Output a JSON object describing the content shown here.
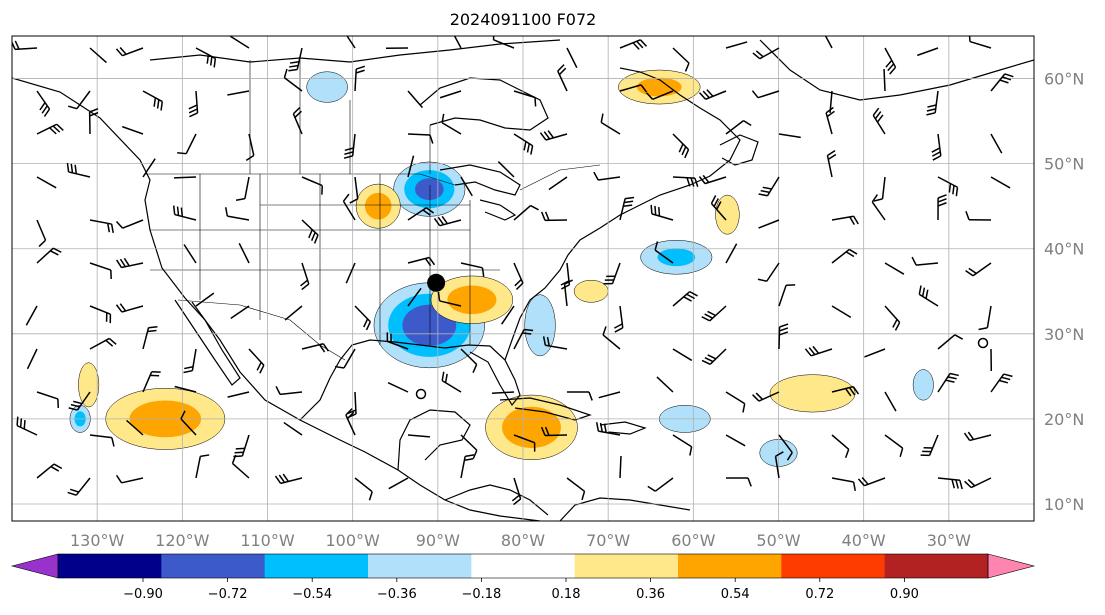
{
  "title": "2024091100 F072",
  "map": {
    "projection": "equirectangular",
    "extent_deg": {
      "lon_min": -140,
      "lon_max": -20,
      "lat_min": 8,
      "lat_max": 65
    },
    "gridlines": true,
    "lon_ticks": [
      {
        "value": -130,
        "label": "130°W"
      },
      {
        "value": -120,
        "label": "120°W"
      },
      {
        "value": -110,
        "label": "110°W"
      },
      {
        "value": -100,
        "label": "100°W"
      },
      {
        "value": -90,
        "label": "90°W"
      },
      {
        "value": -80,
        "label": "80°W"
      },
      {
        "value": -70,
        "label": "70°W"
      },
      {
        "value": -60,
        "label": "60°W"
      },
      {
        "value": -50,
        "label": "50°W"
      },
      {
        "value": -40,
        "label": "40°W"
      },
      {
        "value": -30,
        "label": "30°W"
      }
    ],
    "lat_ticks": [
      {
        "value": 60,
        "label": "60°N"
      },
      {
        "value": 50,
        "label": "50°N"
      },
      {
        "value": 40,
        "label": "40°N"
      },
      {
        "value": 30,
        "label": "30°N"
      },
      {
        "value": 20,
        "label": "20°N"
      },
      {
        "value": 10,
        "label": "10°N"
      }
    ],
    "marker": {
      "lon": -90.2,
      "lat": 36.0,
      "style": "filled-black-dot"
    },
    "colors": {
      "coast": "#000000",
      "grid": "#b0b0b0",
      "barb": "#000000"
    }
  },
  "colorbar": {
    "orientation": "horizontal",
    "extend": "both",
    "levels": [
      -0.9,
      -0.72,
      -0.54,
      -0.36,
      -0.18,
      0.18,
      0.36,
      0.54,
      0.72,
      0.9
    ],
    "tick_labels": [
      "−0.90",
      "−0.72",
      "−0.54",
      "−0.36",
      "−0.18",
      "0.18",
      "0.36",
      "0.54",
      "0.72",
      "0.90"
    ],
    "colors": [
      "#9932cc",
      "#00008b",
      "#3d5acb",
      "#00bfff",
      "#b0e0fa",
      "#ffffff",
      "#ffe88a",
      "#ffa500",
      "#ff3c00",
      "#b22222",
      "#ff85b0"
    ]
  },
  "anomalies": [
    {
      "lon": -91,
      "lat": 31,
      "rx": 6.5,
      "ry": 5.0,
      "sign": -1,
      "peak": 0.7
    },
    {
      "lon": -91,
      "lat": 47,
      "rx": 4.2,
      "ry": 3.2,
      "sign": -1,
      "peak": 0.6
    },
    {
      "lon": -132,
      "lat": 20,
      "rx": 1.2,
      "ry": 1.6,
      "sign": -1,
      "peak": 0.4
    },
    {
      "lon": -122,
      "lat": 20,
      "rx": 7,
      "ry": 3.6,
      "sign": 1,
      "peak": 0.45
    },
    {
      "lon": -97,
      "lat": 45,
      "rx": 2.6,
      "ry": 2.6,
      "sign": 1,
      "peak": 0.45
    },
    {
      "lon": -86,
      "lat": 34,
      "rx": 4.8,
      "ry": 2.8,
      "sign": 1,
      "peak": 0.45
    },
    {
      "lon": -79,
      "lat": 19,
      "rx": 5.4,
      "ry": 3.8,
      "sign": 1,
      "peak": 0.5
    },
    {
      "lon": -64,
      "lat": 59,
      "rx": 4.8,
      "ry": 2.0,
      "sign": 1,
      "peak": 0.4
    },
    {
      "lon": -46,
      "lat": 23,
      "rx": 5.0,
      "ry": 2.2,
      "sign": 1,
      "peak": 0.3
    },
    {
      "lon": -62,
      "lat": 39,
      "rx": 4.2,
      "ry": 2.0,
      "sign": -1,
      "peak": 0.38
    },
    {
      "lon": -78,
      "lat": 31,
      "rx": 1.8,
      "ry": 3.6,
      "sign": -1,
      "peak": 0.35
    },
    {
      "lon": -131,
      "lat": 24,
      "rx": 1.2,
      "ry": 2.6,
      "sign": 1,
      "peak": 0.3
    },
    {
      "lon": -103,
      "lat": 59,
      "rx": 2.4,
      "ry": 1.8,
      "sign": -1,
      "peak": 0.28
    },
    {
      "lon": -61,
      "lat": 20,
      "rx": 3.0,
      "ry": 1.6,
      "sign": -1,
      "peak": 0.3
    },
    {
      "lon": -50,
      "lat": 16,
      "rx": 2.2,
      "ry": 1.6,
      "sign": -1,
      "peak": 0.3
    },
    {
      "lon": -72,
      "lat": 35,
      "rx": 2.0,
      "ry": 1.3,
      "sign": 1,
      "peak": 0.25
    },
    {
      "lon": -56,
      "lat": 44,
      "rx": 1.4,
      "ry": 2.3,
      "sign": 1,
      "peak": 0.25
    },
    {
      "lon": -33,
      "lat": 24,
      "rx": 1.2,
      "ry": 1.8,
      "sign": -1,
      "peak": 0.3
    }
  ]
}
